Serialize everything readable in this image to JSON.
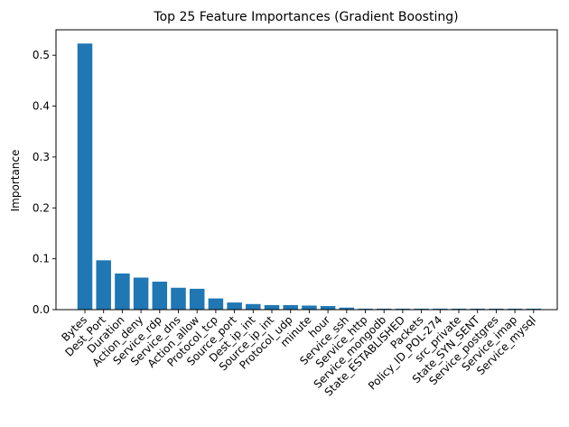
{
  "chart_data": {
    "type": "bar",
    "title": "Top 25 Feature Importances (Gradient Boosting)",
    "xlabel": "",
    "ylabel": "Importance",
    "ylim": [
      0,
      0.55
    ],
    "yticks": [
      "0.0",
      "0.1",
      "0.2",
      "0.3",
      "0.4",
      "0.5"
    ],
    "grid": false,
    "bar_color": "#1f77b4",
    "categories": [
      "Bytes",
      "Dest_Port",
      "Duration",
      "Action_deny",
      "Service_rdp",
      "Service_dns",
      "Action_allow",
      "Protocol_tcp",
      "Source_port",
      "Dest_ip_int",
      "Source_ip_int",
      "Protocol_udp",
      "minute",
      "hour",
      "Service_ssh",
      "Service_http",
      "Service_mongodb",
      "State_ESTABLISHED",
      "Packets",
      "Policy_ID_POL-274",
      "src_private",
      "State_SYN_SENT",
      "Service_postgres",
      "Service_imap",
      "Service_mysql"
    ],
    "values": [
      0.523,
      0.097,
      0.071,
      0.063,
      0.055,
      0.043,
      0.041,
      0.022,
      0.014,
      0.011,
      0.009,
      0.009,
      0.008,
      0.007,
      0.004,
      0.002,
      0.002,
      0.002,
      0.002,
      0.002,
      0.002,
      0.002,
      0.002,
      0.002,
      0.002
    ]
  }
}
